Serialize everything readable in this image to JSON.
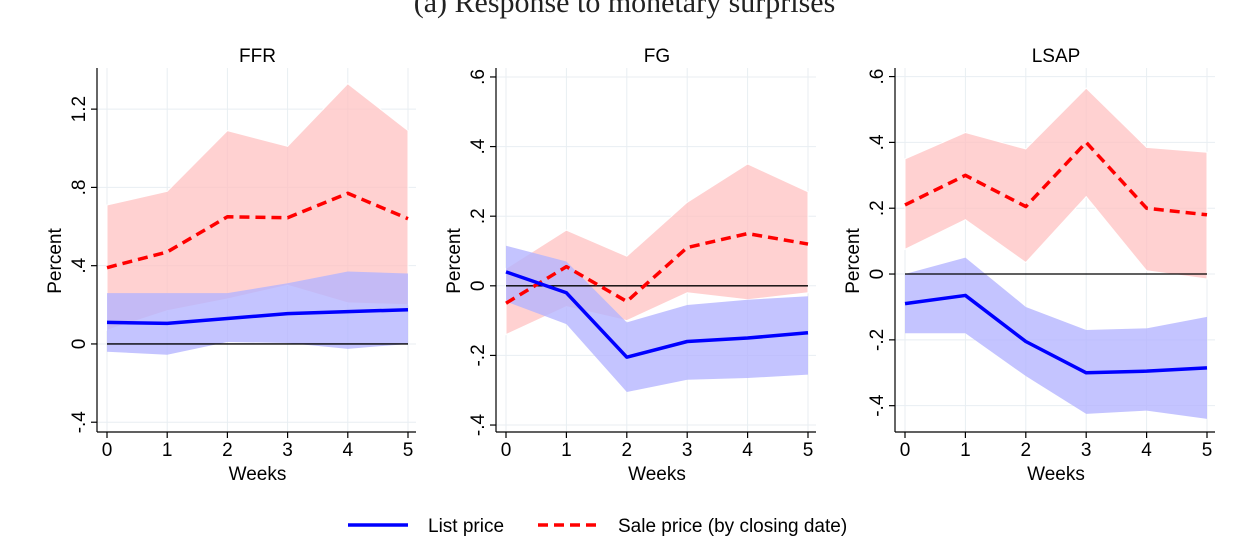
{
  "page": {
    "caption": "(a) Response to monetary surprises"
  },
  "legend": {
    "placement": "bottom-center",
    "items": [
      {
        "label": "List price",
        "color": "#0000ff",
        "dash": "solid"
      },
      {
        "label": "Sale price (by closing date)",
        "color": "#ff0000",
        "dash": "dashed"
      }
    ]
  },
  "colors": {
    "list_line": "#0000ff",
    "sale_line": "#ff0000",
    "list_band": "#b3b3ff",
    "sale_band": "#ffbfbf",
    "zero_line": "#000000",
    "grid": "#e8eef2"
  },
  "chart_data": [
    {
      "type": "line",
      "title": "FFR",
      "xlabel": "Weeks",
      "ylabel": "Percent",
      "x": [
        0,
        1,
        2,
        3,
        4,
        5
      ],
      "xticks": [
        "0",
        "1",
        "2",
        "3",
        "4",
        "5"
      ],
      "ylim": [
        -0.45,
        1.4
      ],
      "yticks": [
        -0.4,
        0,
        0.4,
        0.8,
        1.2
      ],
      "ytick_labels": [
        "-.4",
        "0",
        ".4",
        ".8",
        "1.2"
      ],
      "grid": true,
      "series": [
        {
          "name": "Sale price (by closing date)",
          "key": "sale",
          "values": [
            0.39,
            0.47,
            0.65,
            0.645,
            0.77,
            0.64
          ],
          "lower": [
            0.07,
            0.17,
            0.23,
            0.3,
            0.21,
            0.2
          ],
          "upper": [
            0.71,
            0.78,
            1.09,
            1.01,
            1.33,
            1.09
          ]
        },
        {
          "name": "List price",
          "key": "list",
          "values": [
            0.11,
            0.105,
            0.13,
            0.155,
            0.165,
            0.175
          ],
          "lower": [
            -0.04,
            -0.055,
            0.01,
            0.005,
            -0.025,
            0.0
          ],
          "upper": [
            0.26,
            0.26,
            0.26,
            0.31,
            0.37,
            0.36
          ]
        }
      ]
    },
    {
      "type": "line",
      "title": "FG",
      "xlabel": "Weeks",
      "ylabel": "Percent",
      "x": [
        0,
        1,
        2,
        3,
        4,
        5
      ],
      "xticks": [
        "0",
        "1",
        "2",
        "3",
        "4",
        "5"
      ],
      "ylim": [
        -0.42,
        0.62
      ],
      "yticks": [
        -0.4,
        -0.2,
        0,
        0.2,
        0.4,
        0.6
      ],
      "ytick_labels": [
        "-.4",
        "-.2",
        "0",
        ".2",
        ".4",
        ".6"
      ],
      "grid": true,
      "series": [
        {
          "name": "Sale price (by closing date)",
          "key": "sale",
          "values": [
            -0.05,
            0.055,
            -0.045,
            0.11,
            0.15,
            0.12
          ],
          "lower": [
            -0.14,
            -0.06,
            -0.1,
            -0.02,
            -0.04,
            -0.02
          ],
          "upper": [
            0.05,
            0.16,
            0.085,
            0.24,
            0.35,
            0.27
          ]
        },
        {
          "name": "List price",
          "key": "list",
          "values": [
            0.04,
            -0.02,
            -0.205,
            -0.16,
            -0.15,
            -0.135
          ],
          "lower": [
            -0.045,
            -0.11,
            -0.305,
            -0.27,
            -0.265,
            -0.255
          ],
          "upper": [
            0.115,
            0.07,
            -0.105,
            -0.055,
            -0.04,
            -0.03
          ]
        }
      ]
    },
    {
      "type": "line",
      "title": "LSAP",
      "xlabel": "Weeks",
      "ylabel": "Percent",
      "x": [
        0,
        1,
        2,
        3,
        4,
        5
      ],
      "xticks": [
        "0",
        "1",
        "2",
        "3",
        "4",
        "5"
      ],
      "ylim": [
        -0.48,
        0.62
      ],
      "yticks": [
        -0.4,
        -0.2,
        0,
        0.2,
        0.4,
        0.6
      ],
      "ytick_labels": [
        "-.4",
        "-.2",
        "0",
        ".2",
        ".4",
        ".6"
      ],
      "grid": true,
      "series": [
        {
          "name": "Sale price (by closing date)",
          "key": "sale",
          "values": [
            0.21,
            0.3,
            0.205,
            0.4,
            0.2,
            0.18
          ],
          "lower": [
            0.075,
            0.165,
            0.035,
            0.235,
            0.01,
            -0.015
          ],
          "upper": [
            0.35,
            0.43,
            0.38,
            0.565,
            0.385,
            0.37
          ]
        },
        {
          "name": "List price",
          "key": "list",
          "values": [
            -0.09,
            -0.065,
            -0.205,
            -0.3,
            -0.295,
            -0.285
          ],
          "lower": [
            -0.18,
            -0.18,
            -0.31,
            -0.425,
            -0.415,
            -0.44
          ],
          "upper": [
            0.0,
            0.05,
            -0.1,
            -0.17,
            -0.165,
            -0.13
          ]
        }
      ]
    }
  ]
}
